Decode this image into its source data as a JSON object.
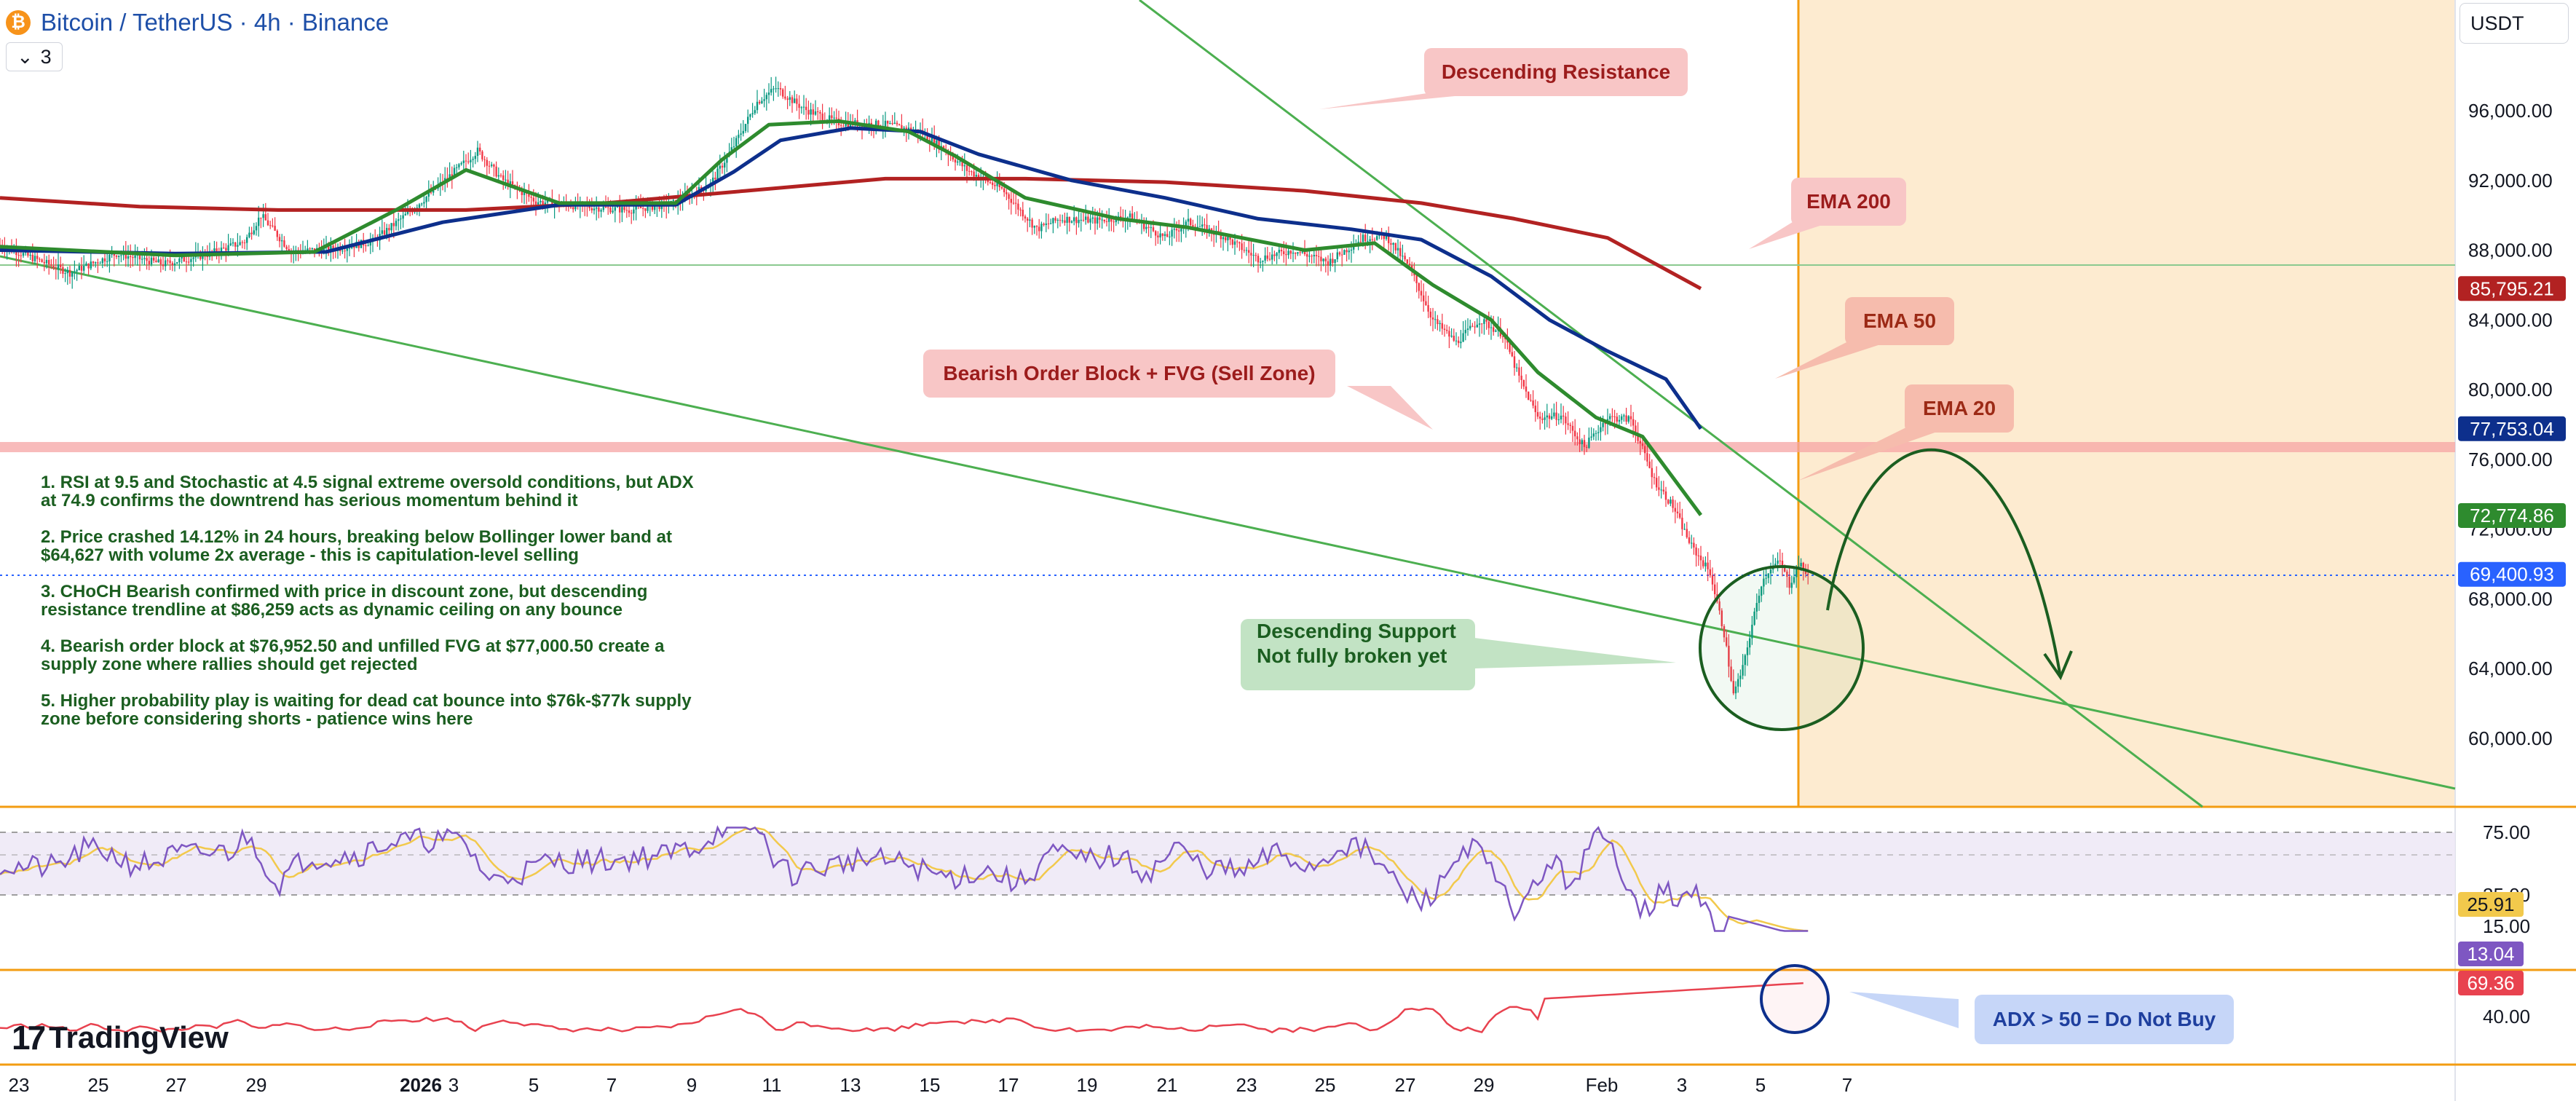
{
  "header": {
    "symbol_icon": "bitcoin-coin-icon",
    "title": "Bitcoin / TetherUS · 4h · Binance"
  },
  "legend_toggle": {
    "icon": "chevron-down-icon",
    "count": "3"
  },
  "currency": "USDT",
  "branding": {
    "logo_mark": "17",
    "logo_text": "TradingView"
  },
  "colors": {
    "up": "#089981",
    "down": "#f23645",
    "ema20": "#2e8b2e",
    "ema50": "#0d2f8c",
    "ema200": "#b22222",
    "rsi": "#7e57c2",
    "rsi_ma": "#f2c94c",
    "adx": "#e8424f",
    "trendline": "#4caf50",
    "orange": "#f39c12",
    "zone_fill": "#fdebd0"
  },
  "chart_data": {
    "type": "candlestick",
    "price_axis": {
      "ticks": [
        "96,000.00",
        "92,000.00",
        "88,000.00",
        "84,000.00",
        "80,000.00",
        "76,000.00",
        "72,000.00",
        "68,000.00",
        "64,000.00",
        "60,000.00"
      ],
      "range": [
        57000,
        100000
      ]
    },
    "time_axis": {
      "ticks": [
        "23",
        "25",
        "27",
        "29",
        "2026",
        "3",
        "5",
        "7",
        "9",
        "11",
        "13",
        "15",
        "17",
        "19",
        "21",
        "23",
        "25",
        "27",
        "29",
        "Feb",
        "3",
        "5",
        "7"
      ]
    },
    "price_labels": [
      {
        "name": "EMA 200",
        "value": "85,795.21",
        "color": "#b22222"
      },
      {
        "name": "EMA 50",
        "value": "77,753.04",
        "color": "#0d2f8c"
      },
      {
        "name": "EMA 20",
        "value": "72,774.86",
        "color": "#2e8b2e"
      },
      {
        "name": "Last price",
        "value": "69,400.93",
        "color": "#2962ff"
      }
    ],
    "horizontal_levels": [
      87100,
      76952.5
    ],
    "candles_anchor": [
      [
        0,
        88300
      ],
      [
        30,
        86700
      ],
      [
        50,
        87800
      ],
      [
        70,
        87200
      ],
      [
        90,
        87800
      ],
      [
        105,
        88500
      ],
      [
        112,
        90000
      ],
      [
        125,
        87900
      ],
      [
        145,
        88100
      ],
      [
        160,
        88500
      ],
      [
        175,
        90100
      ],
      [
        190,
        91900
      ],
      [
        205,
        93700
      ],
      [
        215,
        92100
      ],
      [
        230,
        90800
      ],
      [
        250,
        90500
      ],
      [
        270,
        90300
      ],
      [
        290,
        90700
      ],
      [
        305,
        91800
      ],
      [
        315,
        94000
      ],
      [
        325,
        96500
      ],
      [
        333,
        97300
      ],
      [
        345,
        96100
      ],
      [
        360,
        95300
      ],
      [
        380,
        95200
      ],
      [
        395,
        94800
      ],
      [
        405,
        93800
      ],
      [
        415,
        92600
      ],
      [
        430,
        91500
      ],
      [
        445,
        89200
      ],
      [
        455,
        89800
      ],
      [
        470,
        89700
      ],
      [
        485,
        89900
      ],
      [
        500,
        88700
      ],
      [
        510,
        89600
      ],
      [
        525,
        88800
      ],
      [
        540,
        87500
      ],
      [
        555,
        88000
      ],
      [
        570,
        87300
      ],
      [
        585,
        88700
      ],
      [
        595,
        88800
      ],
      [
        605,
        87000
      ],
      [
        615,
        84000
      ],
      [
        625,
        82700
      ],
      [
        635,
        84000
      ],
      [
        645,
        83200
      ],
      [
        652,
        80700
      ],
      [
        660,
        78400
      ],
      [
        670,
        78500
      ],
      [
        680,
        76700
      ],
      [
        690,
        78400
      ],
      [
        700,
        78300
      ],
      [
        710,
        74800
      ],
      [
        718,
        73300
      ],
      [
        726,
        71000
      ],
      [
        734,
        69500
      ],
      [
        740,
        66000
      ],
      [
        744,
        62500
      ],
      [
        748,
        64000
      ],
      [
        752,
        66500
      ],
      [
        756,
        68900
      ],
      [
        760,
        69800
      ],
      [
        764,
        70100
      ],
      [
        768,
        68800
      ],
      [
        772,
        70000
      ],
      [
        776,
        69400
      ]
    ],
    "ema_20": [
      [
        0,
        88200
      ],
      [
        75,
        87700
      ],
      [
        135,
        87900
      ],
      [
        170,
        90300
      ],
      [
        200,
        92600
      ],
      [
        240,
        90700
      ],
      [
        290,
        90700
      ],
      [
        310,
        93200
      ],
      [
        330,
        95200
      ],
      [
        360,
        95400
      ],
      [
        390,
        94800
      ],
      [
        410,
        93400
      ],
      [
        440,
        91000
      ],
      [
        480,
        89800
      ],
      [
        510,
        89300
      ],
      [
        560,
        88000
      ],
      [
        590,
        88400
      ],
      [
        615,
        86000
      ],
      [
        640,
        84000
      ],
      [
        660,
        81000
      ],
      [
        685,
        78400
      ],
      [
        705,
        77300
      ],
      [
        730,
        72800
      ]
    ],
    "ema_50": [
      [
        0,
        88000
      ],
      [
        75,
        87800
      ],
      [
        140,
        87900
      ],
      [
        190,
        89600
      ],
      [
        240,
        90600
      ],
      [
        290,
        90600
      ],
      [
        315,
        92500
      ],
      [
        335,
        94300
      ],
      [
        365,
        95000
      ],
      [
        395,
        94800
      ],
      [
        420,
        93500
      ],
      [
        460,
        92000
      ],
      [
        500,
        91000
      ],
      [
        540,
        89800
      ],
      [
        580,
        89200
      ],
      [
        610,
        88600
      ],
      [
        640,
        86500
      ],
      [
        665,
        84000
      ],
      [
        690,
        82200
      ],
      [
        715,
        80600
      ],
      [
        730,
        77753
      ]
    ],
    "ema_200": [
      [
        0,
        91000
      ],
      [
        60,
        90500
      ],
      [
        120,
        90300
      ],
      [
        200,
        90300
      ],
      [
        260,
        90700
      ],
      [
        320,
        91400
      ],
      [
        380,
        92100
      ],
      [
        440,
        92100
      ],
      [
        500,
        91900
      ],
      [
        560,
        91400
      ],
      [
        610,
        90700
      ],
      [
        650,
        89800
      ],
      [
        690,
        88700
      ],
      [
        730,
        85795
      ]
    ],
    "rsi": {
      "ticks": [
        "75.00",
        "35.00",
        "15.00"
      ],
      "last_values": [
        "25.91",
        "13.04"
      ],
      "ma_value": "25.91",
      "value": "13.04"
    },
    "adx": {
      "ticks": [
        "40.00"
      ],
      "value": "69.36"
    },
    "annotations": {
      "descending_resistance": "Descending Resistance",
      "ema200": "EMA 200",
      "ema50": "EMA 50",
      "ema20": "EMA 20",
      "order_block": "Bearish Order Block + FVG (Sell Zone)",
      "support_line1": "Descending Support",
      "support_line2": "Not fully broken yet",
      "adx_note": "ADX > 50 = Do Not Buy"
    },
    "notes": [
      "1. RSI at 9.5 and Stochastic at 4.5 signal extreme oversold conditions, but ADX at 74.9 confirms the downtrend has serious momentum behind it",
      "2. Price crashed 14.12% in 24 hours, breaking below Bollinger lower band at $64,627 with volume 2x average - this is capitulation-level selling",
      "3. CHoCH Bearish confirmed with price in discount zone, but descending resistance trendline at $86,259 acts as dynamic ceiling on any bounce",
      "4. Bearish order block at $76,952.50 and unfilled FVG at $77,000.50 create a supply zone where rallies should get rejected",
      "5. Higher probability play is waiting for dead cat bounce into $76k-$77k supply zone before considering shorts - patience wins here"
    ]
  }
}
